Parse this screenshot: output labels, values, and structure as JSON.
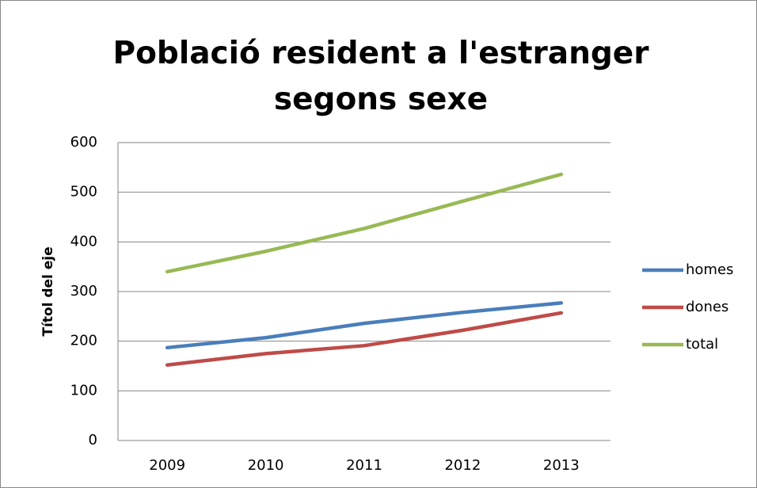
{
  "chart_data": {
    "type": "line",
    "title": "Població resident a l'estranger segons sexe",
    "y_axis_label": "Títol del eje",
    "categories": [
      "2009",
      "2010",
      "2011",
      "2012",
      "2013"
    ],
    "series": [
      {
        "name": "homes",
        "color": "#4a7ebb",
        "values": [
          187,
          207,
          236,
          258,
          277
        ]
      },
      {
        "name": "dones",
        "color": "#be4b48",
        "values": [
          152,
          175,
          191,
          222,
          257
        ]
      },
      {
        "name": "total",
        "color": "#98b954",
        "values": [
          340,
          381,
          427,
          482,
          536
        ]
      }
    ],
    "ylim": [
      0,
      600
    ],
    "yticks": [
      0,
      100,
      200,
      300,
      400,
      500,
      600
    ],
    "grid": true,
    "legend": "right"
  }
}
